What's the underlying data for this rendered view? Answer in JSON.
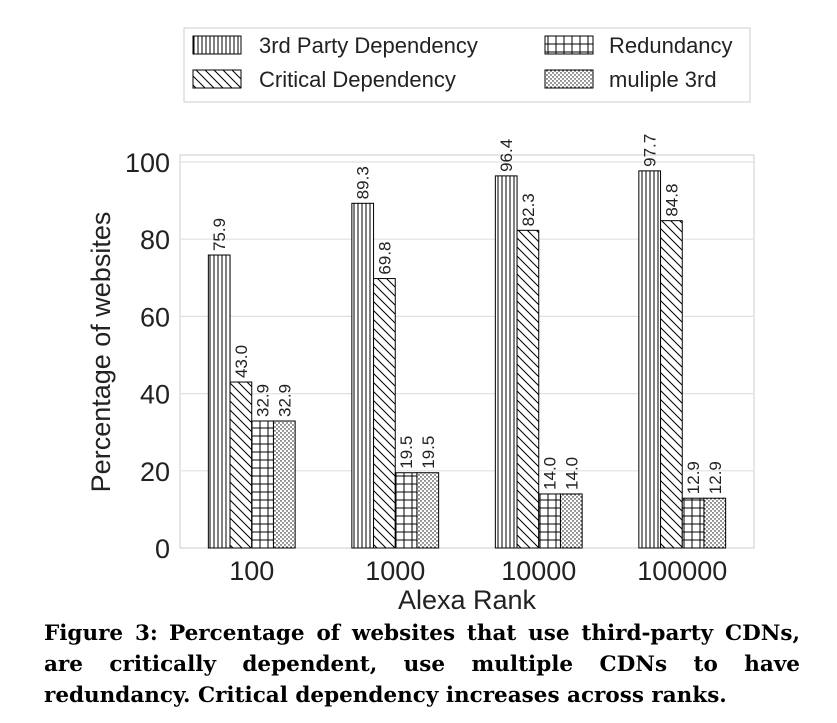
{
  "chart_data": {
    "type": "bar",
    "categories": [
      "100",
      "1000",
      "10000",
      "100000"
    ],
    "series": [
      {
        "name": "3rd Party Dependency",
        "pattern": "vertical-lines",
        "values": [
          75.9,
          89.3,
          96.4,
          97.7
        ],
        "labels": [
          "75.9",
          "89.3",
          "96.4",
          "97.7"
        ]
      },
      {
        "name": "Critical Dependency",
        "pattern": "diagonal-lines",
        "values": [
          43.0,
          69.8,
          82.3,
          84.8
        ],
        "labels": [
          "43.0",
          "69.8",
          "82.3",
          "84.8"
        ]
      },
      {
        "name": "Redundancy",
        "pattern": "grid",
        "values": [
          32.9,
          19.5,
          14.0,
          12.9
        ],
        "labels": [
          "32.9",
          "19.5",
          "14.0",
          "12.9"
        ]
      },
      {
        "name": "muliple 3rd",
        "pattern": "dots",
        "values": [
          32.9,
          19.5,
          14.0,
          12.9
        ],
        "labels": [
          "32.9",
          "19.5",
          "14.0",
          "12.9"
        ]
      }
    ],
    "xlabel": "Alexa Rank",
    "ylabel": "Percentage of websites",
    "ylim": [
      0,
      100
    ],
    "yticks": [
      "0",
      "20",
      "40",
      "60",
      "80",
      "100"
    ],
    "grid": true,
    "legend_position": "top-center",
    "colors": {
      "bar_fill": "#ffffff",
      "bar_stroke": "#000000",
      "grid": "#e0e0e0",
      "text": "#222222"
    }
  },
  "caption": {
    "label": "Figure 3:",
    "text": "Percentage of websites that use third-party CDNs, are critically dependent, use multiple CDNs to have redundancy. Critical dependency increases across ranks."
  }
}
